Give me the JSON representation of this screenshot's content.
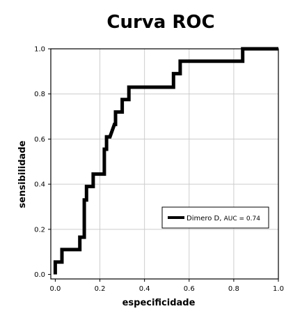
{
  "chart_data": {
    "type": "line",
    "title": "Curva ROC",
    "xlabel": "especificidade",
    "ylabel": "sensibilidade",
    "xlim": [
      -0.02,
      1.0
    ],
    "ylim": [
      -0.02,
      1.0
    ],
    "xticks": [
      "0.0",
      "0.2",
      "0.4",
      "0.6",
      "0.8",
      "1.0"
    ],
    "yticks": [
      "0.0",
      "0.2",
      "0.4",
      "0.6",
      "0.8",
      "1.0"
    ],
    "grid": true,
    "legend_position": "center-right",
    "series": [
      {
        "name": "Dimero D",
        "auc_label": "AUC = 0.74",
        "color": "#000000",
        "x": [
          0.0,
          0.0,
          0.03,
          0.03,
          0.11,
          0.11,
          0.13,
          0.13,
          0.14,
          0.14,
          0.17,
          0.17,
          0.22,
          0.22,
          0.23,
          0.23,
          0.245,
          0.265,
          0.27,
          0.27,
          0.3,
          0.3,
          0.33,
          0.33,
          0.53,
          0.53,
          0.56,
          0.56,
          0.84,
          0.84,
          1.0
        ],
        "y": [
          0.0,
          0.055,
          0.055,
          0.11,
          0.11,
          0.165,
          0.165,
          0.33,
          0.33,
          0.39,
          0.39,
          0.445,
          0.445,
          0.555,
          0.555,
          0.61,
          0.61,
          0.665,
          0.665,
          0.72,
          0.72,
          0.775,
          0.775,
          0.83,
          0.83,
          0.89,
          0.89,
          0.945,
          0.945,
          1.0,
          1.0
        ]
      }
    ]
  }
}
